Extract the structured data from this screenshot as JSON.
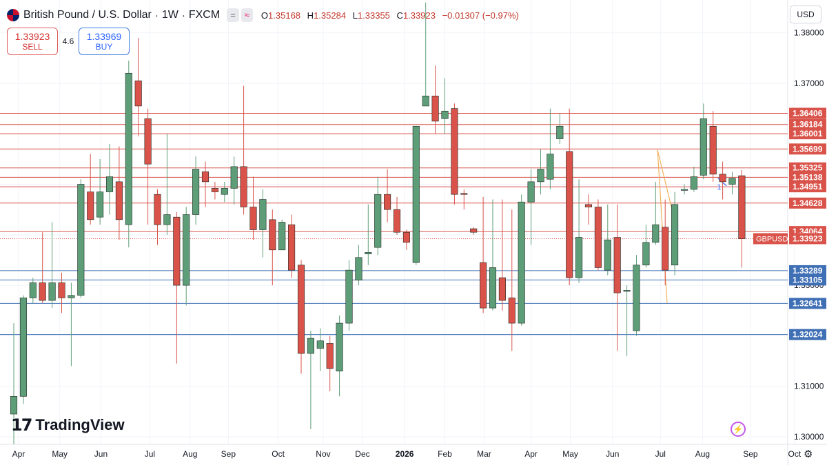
{
  "header": {
    "title": "British Pound / U.S. Dollar",
    "interval": "1W",
    "exchange": "FXCM",
    "ohlc": {
      "open_label": "O",
      "open": "1.35168",
      "high_label": "H",
      "high": "1.35284",
      "low_label": "L",
      "low": "1.33355",
      "close_label": "C",
      "close": "1.33923",
      "change": "−0.01307 (−0.97%)"
    }
  },
  "trade": {
    "sell_price": "1.33923",
    "sell_label": "SELL",
    "spread": "4.6",
    "buy_price": "1.33969",
    "buy_label": "BUY"
  },
  "currency": "USD",
  "logo": "TradingView",
  "colors": {
    "bull": "#5d9e78",
    "bear": "#d9534a",
    "resistance": "#d9534a",
    "support": "#3f6fb5",
    "current": "#d9534a"
  },
  "chart_data": {
    "type": "candlestick",
    "symbol": "GBPUSD",
    "ylim": [
      1.2985,
      1.3865
    ],
    "y_ticks": [
      1.3,
      1.31,
      1.32,
      1.33,
      1.34,
      1.35,
      1.36,
      1.37,
      1.38
    ],
    "y_tick_labels": [
      "1.30000",
      "1.31000",
      "1.32000",
      "1.33000",
      "1.34000",
      "1.35000",
      "1.36000",
      "1.37000",
      "1.38000"
    ],
    "x_labels": [
      {
        "i": 0.5,
        "label": "Apr"
      },
      {
        "i": 4.8,
        "label": "May"
      },
      {
        "i": 9.1,
        "label": "Jun"
      },
      {
        "i": 14.2,
        "label": "Jul"
      },
      {
        "i": 18.4,
        "label": "Aug"
      },
      {
        "i": 22.4,
        "label": "Sep"
      },
      {
        "i": 27.6,
        "label": "Oct"
      },
      {
        "i": 32.3,
        "label": "Nov"
      },
      {
        "i": 36.4,
        "label": "Dec"
      },
      {
        "i": 40.8,
        "label": "2026"
      },
      {
        "i": 45.0,
        "label": "Feb"
      },
      {
        "i": 49.1,
        "label": "Mar"
      },
      {
        "i": 54.0,
        "label": "Apr"
      },
      {
        "i": 58.1,
        "label": "May"
      },
      {
        "i": 62.5,
        "label": "Jun"
      },
      {
        "i": 67.5,
        "label": "Jul"
      },
      {
        "i": 71.9,
        "label": "Aug"
      },
      {
        "i": 76.9,
        "label": "Sep"
      },
      {
        "i": 81.5,
        "label": "Oct"
      }
    ],
    "resistance_levels": [
      1.36406,
      1.36184,
      1.36001,
      1.35699,
      1.35325,
      1.35138,
      1.34951,
      1.34628,
      1.34064
    ],
    "resistance_labels": [
      "1.36406",
      "1.36184",
      "1.36001",
      "1.35699",
      "1.35325",
      "1.35138",
      "1.34951",
      "1.34628",
      "1.34064"
    ],
    "support_levels": [
      1.33289,
      1.33105,
      1.32641,
      1.32024
    ],
    "support_labels": [
      "1.33289",
      "1.33105",
      "1.32641",
      "1.32024"
    ],
    "last_price": 1.33923,
    "last_price_label": "1.33923",
    "marker_label": "1",
    "candles": [
      [
        1.3045,
        1.308,
        1.2985,
        1.3225
      ],
      [
        1.308,
        1.3275,
        1.3065,
        1.328
      ],
      [
        1.3275,
        1.3305,
        1.3265,
        1.3315
      ],
      [
        1.3305,
        1.327,
        1.3265,
        1.3405
      ],
      [
        1.327,
        1.3305,
        1.3255,
        1.3425
      ],
      [
        1.3305,
        1.3275,
        1.3245,
        1.3325
      ],
      [
        1.3275,
        1.328,
        1.314,
        1.3305
      ],
      [
        1.328,
        1.35,
        1.3275,
        1.351
      ],
      [
        1.3485,
        1.343,
        1.342,
        1.356
      ],
      [
        1.3435,
        1.3485,
        1.342,
        1.355
      ],
      [
        1.3485,
        1.3515,
        1.344,
        1.358
      ],
      [
        1.3505,
        1.343,
        1.339,
        1.3575
      ],
      [
        1.342,
        1.372,
        1.3375,
        1.3745
      ],
      [
        1.3705,
        1.3655,
        1.3595,
        1.379
      ],
      [
        1.363,
        1.354,
        1.342,
        1.365
      ],
      [
        1.348,
        1.342,
        1.338,
        1.349
      ],
      [
        1.342,
        1.344,
        1.34,
        1.36
      ],
      [
        1.3435,
        1.33,
        1.3145,
        1.3445
      ],
      [
        1.33,
        1.344,
        1.326,
        1.3455
      ],
      [
        1.344,
        1.353,
        1.342,
        1.3555
      ],
      [
        1.3525,
        1.3505,
        1.3455,
        1.3545
      ],
      [
        1.3492,
        1.3485,
        1.347,
        1.3505
      ],
      [
        1.348,
        1.3492,
        1.3465,
        1.3505
      ],
      [
        1.3492,
        1.3535,
        1.346,
        1.3555
      ],
      [
        1.3535,
        1.3455,
        1.344,
        1.3695
      ],
      [
        1.3455,
        1.341,
        1.339,
        1.3515
      ],
      [
        1.341,
        1.347,
        1.3355,
        1.349
      ],
      [
        1.343,
        1.337,
        1.33,
        1.345
      ],
      [
        1.337,
        1.3425,
        1.337,
        1.343
      ],
      [
        1.342,
        1.333,
        1.3315,
        1.344
      ],
      [
        1.334,
        1.3165,
        1.3125,
        1.335
      ],
      [
        1.3165,
        1.3195,
        1.3015,
        1.321
      ],
      [
        1.3175,
        1.319,
        1.313,
        1.3215
      ],
      [
        1.3185,
        1.3135,
        1.309,
        1.32
      ],
      [
        1.313,
        1.3225,
        1.308,
        1.324
      ],
      [
        1.3225,
        1.333,
        1.321,
        1.335
      ],
      [
        1.331,
        1.3355,
        1.33,
        1.338
      ],
      [
        1.3362,
        1.3365,
        1.334,
        1.346
      ],
      [
        1.3375,
        1.348,
        1.336,
        1.3515
      ],
      [
        1.348,
        1.345,
        1.3425,
        1.353
      ],
      [
        1.345,
        1.3405,
        1.34,
        1.3475
      ],
      [
        1.3405,
        1.3385,
        1.337,
        1.341
      ],
      [
        1.3345,
        1.3615,
        1.334,
        1.361
      ],
      [
        1.3655,
        1.3675,
        1.3655,
        1.386
      ],
      [
        1.3675,
        1.3625,
        1.36,
        1.3735
      ],
      [
        1.363,
        1.3645,
        1.36,
        1.371
      ],
      [
        1.365,
        1.348,
        1.346,
        1.366
      ],
      [
        1.3482,
        1.348,
        1.345,
        1.349
      ],
      [
        1.3412,
        1.3405,
        1.34,
        1.3415
      ],
      [
        1.3345,
        1.3255,
        1.3245,
        1.3475
      ],
      [
        1.3255,
        1.3335,
        1.325,
        1.347
      ],
      [
        1.3315,
        1.327,
        1.325,
        1.347
      ],
      [
        1.3275,
        1.3225,
        1.317,
        1.345
      ],
      [
        1.3225,
        1.3465,
        1.322,
        1.348
      ],
      [
        1.3465,
        1.3505,
        1.338,
        1.353
      ],
      [
        1.3505,
        1.353,
        1.348,
        1.357
      ],
      [
        1.351,
        1.356,
        1.349,
        1.365
      ],
      [
        1.359,
        1.3615,
        1.358,
        1.364
      ],
      [
        1.3565,
        1.3315,
        1.33,
        1.365
      ],
      [
        1.3315,
        1.3395,
        1.3305,
        1.351
      ],
      [
        1.346,
        1.3455,
        1.342,
        1.348
      ],
      [
        1.3455,
        1.3335,
        1.333,
        1.347
      ],
      [
        1.333,
        1.339,
        1.332,
        1.346
      ],
      [
        1.3395,
        1.3285,
        1.317,
        1.346
      ],
      [
        1.329,
        1.329,
        1.316,
        1.33
      ],
      [
        1.321,
        1.334,
        1.32,
        1.336
      ],
      [
        1.334,
        1.3385,
        1.3335,
        1.342
      ],
      [
        1.3385,
        1.342,
        1.338,
        1.3505
      ],
      [
        1.3415,
        1.333,
        1.33,
        1.347
      ],
      [
        1.334,
        1.346,
        1.332,
        1.3485
      ],
      [
        1.3488,
        1.349,
        1.348,
        1.35
      ],
      [
        1.349,
        1.3515,
        1.3485,
        1.3535
      ],
      [
        1.3518,
        1.363,
        1.351,
        1.366
      ],
      [
        1.3615,
        1.352,
        1.3505,
        1.3645
      ],
      [
        1.352,
        1.3505,
        1.347,
        1.3545
      ],
      [
        1.35,
        1.3512,
        1.348,
        1.3525
      ],
      [
        1.3517,
        1.3392,
        1.3335,
        1.3528
      ]
    ]
  }
}
